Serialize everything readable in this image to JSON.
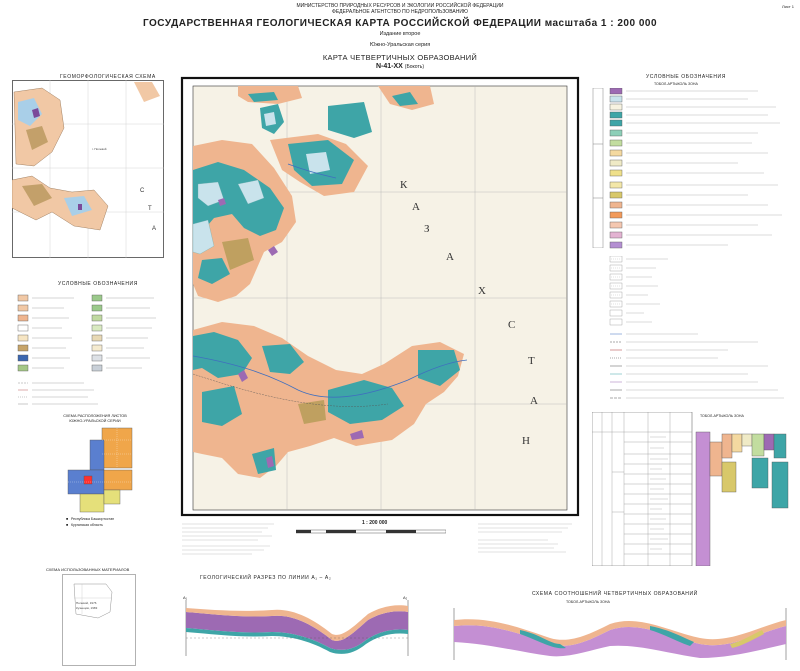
{
  "header": {
    "ministry_line1": "МИНИСТЕРСТВО ПРИРОДНЫХ РЕСУРСОВ И ЭКОЛОГИИ РОССИЙСКОЙ ФЕДЕРАЦИИ",
    "ministry_line2": "ФЕДЕРАЛЬНОЕ АГЕНТСТВО ПО НЕДРОПОЛЬЗОВАНИЮ",
    "title": "ГОСУДАРСТВЕННАЯ ГЕОЛОГИЧЕСКАЯ КАРТА РОССИЙСКОЙ ФЕДЕРАЦИИ масштаба 1 : 200 000",
    "edition": "Издание второе",
    "series": "Южно-Уральская серия",
    "map_name": "КАРТА ЧЕТВЕРТИЧНЫХ ОБРАЗОВАНИЙ",
    "sheet": "N-41-XX",
    "sheet_suffix": "(Бокоть)",
    "corner": "Лист 1"
  },
  "main_map": {
    "country_letters": [
      "К",
      "А",
      "З",
      "А",
      "Х",
      "С",
      "Т",
      "А",
      "Н"
    ],
    "scale": "1 : 200 000"
  },
  "left_panel": {
    "geomorph_title": "ГЕОМОРФОЛОГИЧЕСКАЯ СХЕМА",
    "geomorph_legend_title": "УСЛОВНЫЕ ОБОЗНАЧЕНИЯ",
    "scheme_title": "СХЕМА РАСПОЛОЖЕНИЯ ЛИСТОВ ЮЖНО-УРАЛЬСКОЙ СЕРИИ",
    "materials_title": "СХЕМА ИСПОЛЬЗОВАННЫХ МАТЕРИАЛОВ"
  },
  "right_panel": {
    "legend_title": "УСЛОВНЫЕ ОБОЗНАЧЕНИЯ",
    "zone_title": "ТОБОЛ-АРТЫКОЛЬ ЗОНА",
    "strat_title": "ТОБОЛ-АРТЫКОЛЬ ЗОНА"
  },
  "sections": {
    "section1_title": "ГЕОЛОГИЧЕСКИЙ РАЗРЕЗ ПО ЛИНИИ А₁ – А₂",
    "section2_title": "СХЕМА СООТНОШЕНИЙ ЧЕТВЕРТИЧНЫХ ОБРАЗОВАНИЙ",
    "section2_zone": "ТОБОЛ-АРТЫКОЛЬ ЗОНА",
    "label_a1": "А₁",
    "label_a2": "А₂"
  },
  "colors": {
    "map_base": "#ede8cf",
    "salmon": "#efb58f",
    "teal": "#3ea5a7",
    "lightblue": "#c9e3ec",
    "olive": "#bfa060",
    "purple": "#9d6ab3",
    "grid": "#a8a8a8"
  }
}
